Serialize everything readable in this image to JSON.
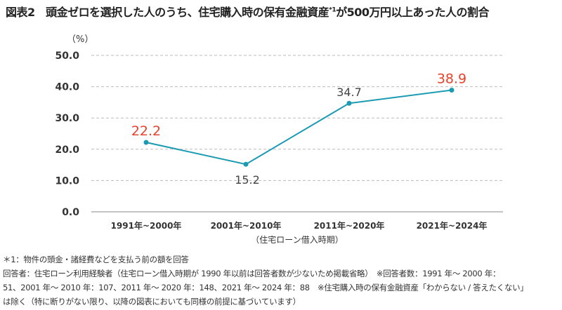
{
  "title": {
    "main": "図表2　頭金ゼロを選択した人のうち、住宅購入時の保有金融資産",
    "sup": "*1",
    "tail": "が500万円以上あった人の割合"
  },
  "chart_data": {
    "type": "line",
    "ylabel": "（%）",
    "xlabel": "（住宅ローン借入時期）",
    "categories": [
      "1991年~2000年",
      "2001年~2010年",
      "2011年~2020年",
      "2021年~2024年"
    ],
    "values": [
      22.2,
      15.2,
      34.7,
      38.9
    ],
    "value_labels": [
      "22.2",
      "15.2",
      "34.7",
      "38.9"
    ],
    "highlight": [
      true,
      false,
      false,
      true
    ],
    "ylim": [
      0,
      50
    ],
    "yticks": [
      "0.0",
      "10.0",
      "20.0",
      "30.0",
      "40.0",
      "50.0"
    ],
    "grid": true,
    "colors": {
      "line": "#1b9ab3",
      "highlight": "#e8412c",
      "label": "#444444",
      "grid": "#bbbbbb"
    }
  },
  "notes": [
    "＊1：物件の頭金・諸経費などを支払う前の額を回答",
    "回答者：住宅ローン利用経験者（住宅ローン借入時期が 1990 年以前は回答者数が少ないため掲載省略）　※回答者数：1991 年～ 2000 年：",
    "51、2001 年～ 2010 年：107、2011 年～ 2020 年：148、2021 年～ 2024 年：88　※住宅購入時の保有金融資産「わからない / 答えたくない」",
    "は除く（特に断りがない限り、以降の図表においても同様の前提に基づいています）"
  ]
}
